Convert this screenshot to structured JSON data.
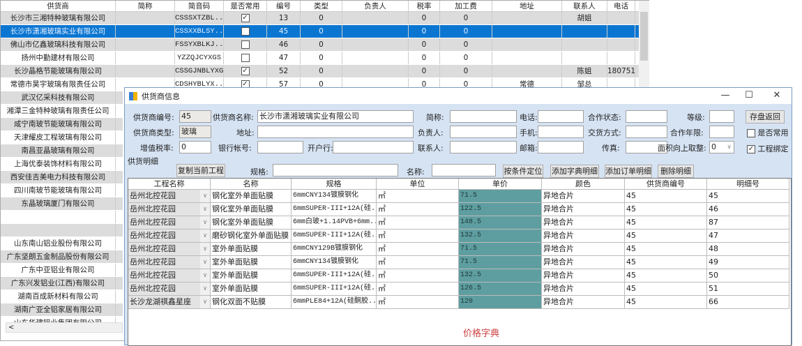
{
  "supplier_list": {
    "columns": [
      "供货商",
      "简称",
      "简音码",
      "是否常用",
      "编号",
      "类型",
      "负责人",
      "税率",
      "加工费",
      "地址",
      "联系人",
      "电话"
    ],
    "rows": [
      {
        "name": "长沙市三湘特种玻璃有限公司",
        "short": "",
        "code": "CSSSXTZBL...",
        "common": true,
        "id": "13",
        "type": "0",
        "owner": "",
        "tax": "0",
        "fee": "0",
        "addr": "",
        "contact": "胡姐",
        "phone": ""
      },
      {
        "name": "长沙市潇湘玻璃实业有限公司",
        "short": "",
        "code": "CSSXXBLSY...",
        "common": false,
        "id": "45",
        "type": "0",
        "owner": "",
        "tax": "0",
        "fee": "0",
        "addr": "",
        "contact": "",
        "phone": "",
        "selected": true
      },
      {
        "name": "佛山市亿鑫玻璃科技有限公司",
        "short": "",
        "code": "FSSYXBLKJ...",
        "common": false,
        "id": "46",
        "type": "0",
        "owner": "",
        "tax": "0",
        "fee": "0",
        "addr": "",
        "contact": "",
        "phone": ""
      },
      {
        "name": "扬州中勤建材有限公司",
        "short": "",
        "code": "YZZQJCYXGS",
        "common": false,
        "id": "47",
        "type": "0",
        "owner": "",
        "tax": "0",
        "fee": "0",
        "addr": "",
        "contact": "",
        "phone": ""
      },
      {
        "name": "长沙晶格节能玻璃有限公司",
        "short": "",
        "code": "CSSGJNBLYXGS",
        "common": true,
        "id": "52",
        "type": "0",
        "owner": "",
        "tax": "0",
        "fee": "0",
        "addr": "",
        "contact": "陈姐",
        "phone": "180751"
      },
      {
        "name": "常德市昊宇玻璃有限责任公司",
        "short": "",
        "code": "CDSHYBLYX...",
        "common": true,
        "id": "57",
        "type": "0",
        "owner": "",
        "tax": "0",
        "fee": "0",
        "addr": "常德",
        "contact": "邹总",
        "phone": ""
      }
    ],
    "more_names": [
      "武汉亿采科技有限公司",
      "湘潭三金特种玻璃有限责任公司",
      "咸宁南玻节能玻璃有限公司",
      "天津耀皮工程玻璃有限公司",
      "南昌亚晶玻璃有限公司",
      "上海优泰装饰材料有限公司",
      "西安佳吉美电力科技有限公司",
      "四川南玻节能玻璃有限公司",
      "东晶玻璃厦门有限公司",
      "",
      "",
      "山东南山铝业股份有限公司",
      "广东坚朗五金制品股份有限公司",
      "广东中亚铝业有限公司",
      "广东兴发铝业(江西)有限公司",
      "湖南百成新材料有限公司",
      "湖南广亚全铝家居有限公司",
      "山东华建铝业集团有限公司"
    ]
  },
  "dialog": {
    "title": "供货商信息",
    "fields": {
      "supplier_no_label": "供货商编号:",
      "supplier_no": "45",
      "supplier_name_label": "供货商名称:",
      "supplier_name": "长沙市潇湘玻璃实业有限公司",
      "short_label": "简称:",
      "short": "",
      "phone_label": "电话:",
      "phone": "",
      "coop_status_label": "合作状态:",
      "coop_status": "",
      "level_label": "等级:",
      "level": "",
      "type_label": "供货商类型:",
      "type": "玻璃",
      "address_label": "地址:",
      "address": "",
      "owner_label": "负责人:",
      "owner": "",
      "mobile_label": "手机:",
      "mobile": "",
      "delivery_label": "交货方式:",
      "delivery": "",
      "coop_years_label": "合作年限:",
      "coop_years": "",
      "vat_label": "增值税率:",
      "vat": "0",
      "bank_account_label": "银行帐号:",
      "bank_account": "",
      "bank_label": "开户行:",
      "bank": "",
      "contact_label": "联系人:",
      "contact": "",
      "email_label": "邮箱:",
      "email": "",
      "fax_label": "传真:",
      "fax": "",
      "round_label": "面积向上取整:",
      "round": "0",
      "spec_label": "规格:",
      "spec": "",
      "name_label": "名称:",
      "name": ""
    },
    "save_button": "存盘返回",
    "common_checkbox": {
      "label": "是否常用",
      "checked": false
    },
    "bind_checkbox": {
      "label": "工程绑定",
      "checked": true
    },
    "detail_group": "供货明细",
    "buttons": {
      "copy": "复制当前工程",
      "locate": "按条件定位",
      "add_dict": "添加字典明细",
      "add_order": "添加订单明细",
      "delete": "删除明细"
    },
    "grid": {
      "columns": [
        "工程名称",
        "名称",
        "规格",
        "单位",
        "单价",
        "颜色",
        "供货商编号",
        "明细号"
      ],
      "rows": [
        [
          "岳州北控花园",
          "钢化室外单面贴膜",
          "6mmCNY134镀膜钢化",
          "㎡",
          "71.5",
          "异地合片",
          "45",
          "45"
        ],
        [
          "岳州北控花园",
          "钢化室外单面贴膜",
          "6mmSUPER-III+12A(硅...",
          "㎡",
          "122.5",
          "异地合片",
          "45",
          "46"
        ],
        [
          "岳州北控花园",
          "钢化室外单面贴膜",
          "6mm白玻+1.14PVB+6mm...",
          "㎡",
          "148.5",
          "异地合片",
          "45",
          "87"
        ],
        [
          "岳州北控花园",
          "磨砂钢化室外单面贴膜",
          "6mmSUPER-III+12A(硅...",
          "㎡",
          "132.5",
          "异地合片",
          "45",
          "47"
        ],
        [
          "岳州北控花园",
          "室外单面贴膜",
          "6mmCNY129B镀膜钢化",
          "㎡",
          "71.5",
          "异地合片",
          "45",
          "48"
        ],
        [
          "岳州北控花园",
          "室外单面贴膜",
          "6mmCNY134镀膜钢化",
          "㎡",
          "71.5",
          "异地合片",
          "45",
          "49"
        ],
        [
          "岳州北控花园",
          "室外单面贴膜",
          "6mmSUPER-III+12A(硅...",
          "㎡",
          "132.5",
          "异地合片",
          "45",
          "50"
        ],
        [
          "岳州北控花园",
          "室外单面贴膜",
          "6mmSUPER-III+12A(硅...",
          "㎡",
          "126.5",
          "异地合片",
          "45",
          "51"
        ],
        [
          "长沙龙湖祺鑫星座",
          "钢化双面不贴膜",
          "6mmPLE84+12A(硅酮胶...",
          "㎡",
          "120",
          "异地合片",
          "45",
          "66"
        ]
      ]
    },
    "footer": "价格字典",
    "colors": {
      "selected_row": "#0a76d2",
      "price_column": "#5f9ea0",
      "footer_text": "#d04040",
      "dialog_bg": "#d6e3f3"
    }
  }
}
